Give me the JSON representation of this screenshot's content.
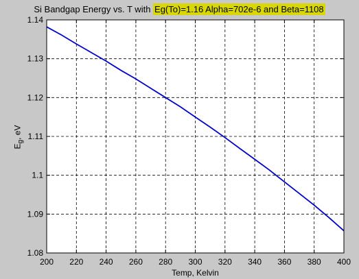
{
  "chart_data": {
    "type": "line",
    "title_prefix": "Si Bandgap Energy vs. T with ",
    "title_highlight": "Eg(To)=1.16 Alpha=702e-6 and Beta=1108",
    "xlabel": "Temp, Kelvin",
    "ylabel_main": "E",
    "ylabel_sub": "g",
    "ylabel_rest": ", eV",
    "xlim": [
      200,
      400
    ],
    "ylim": [
      1.08,
      1.14
    ],
    "xticks": [
      200,
      220,
      240,
      260,
      280,
      300,
      320,
      340,
      360,
      380,
      400
    ],
    "yticks": [
      "1.08",
      "1.09",
      "1.1",
      "1.11",
      "1.12",
      "1.13",
      "1.14"
    ],
    "grid": true,
    "line_color": "#0000cc",
    "highlight_color": "#d8d800",
    "series": [
      {
        "x": [
          200,
          210,
          220,
          230,
          240,
          250,
          260,
          270,
          280,
          290,
          300,
          310,
          320,
          330,
          340,
          350,
          360,
          370,
          380,
          390,
          400
        ],
        "values": [
          1.1382,
          1.1361,
          1.1338,
          1.1316,
          1.1294,
          1.127,
          1.1248,
          1.1224,
          1.12,
          1.1176,
          1.115,
          1.1124,
          1.1097,
          1.1069,
          1.1041,
          1.1013,
          1.0983,
          1.0953,
          1.0923,
          1.0891,
          1.0857
        ]
      }
    ]
  }
}
